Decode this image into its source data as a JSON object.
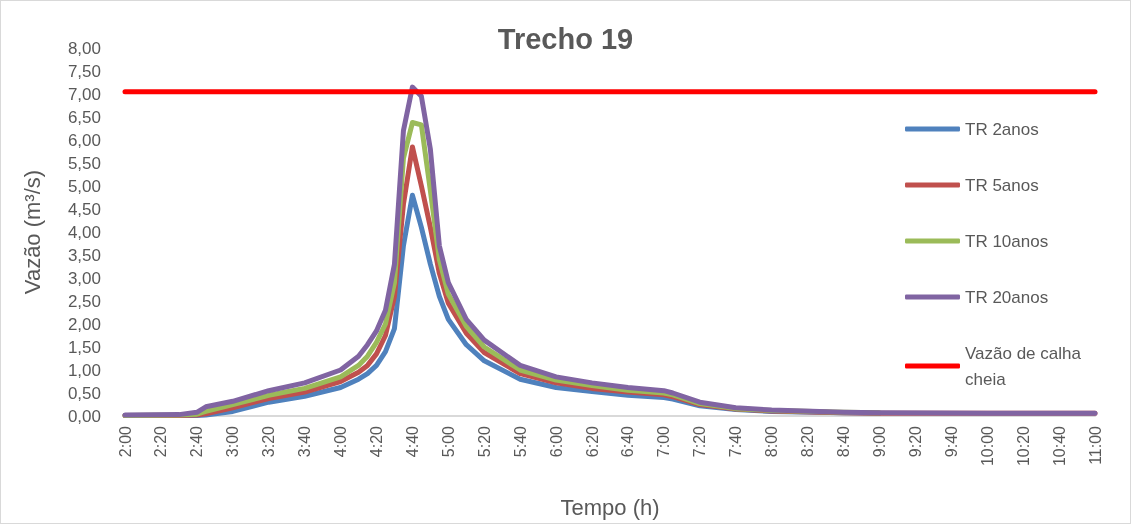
{
  "chart_data": {
    "type": "line",
    "title": "Trecho 19",
    "xlabel": "Tempo (h)",
    "ylabel": "Vazão (m³/s)",
    "x": [
      2,
      2.5,
      2.6667,
      2.75,
      3,
      3.3333,
      3.6667,
      4,
      4.1667,
      4.25,
      4.3333,
      4.4167,
      4.5,
      4.5833,
      4.6667,
      4.75,
      4.8333,
      4.9167,
      5,
      5.1667,
      5.3333,
      5.6667,
      6,
      6.3333,
      6.6667,
      7,
      7.0833,
      7.3333,
      7.6667,
      8,
      8.6667,
      9,
      10,
      11
    ],
    "series": [
      {
        "name": "TR 2anos",
        "color": "#4f81bd",
        "values": [
          0.01,
          0.01,
          0.01,
          0.02,
          0.1,
          0.3,
          0.43,
          0.62,
          0.8,
          0.92,
          1.1,
          1.4,
          1.9,
          3.7,
          4.8,
          4.1,
          3.3,
          2.6,
          2.1,
          1.55,
          1.2,
          0.8,
          0.62,
          0.53,
          0.45,
          0.4,
          0.37,
          0.22,
          0.14,
          0.1,
          0.07,
          0.06,
          null,
          null
        ]
      },
      {
        "name": "TR 5anos",
        "color": "#c0504d",
        "values": [
          0.01,
          0.01,
          0.02,
          0.05,
          0.18,
          0.38,
          0.52,
          0.75,
          0.95,
          1.1,
          1.35,
          1.75,
          2.6,
          4.6,
          5.85,
          5.0,
          4.1,
          3.1,
          2.45,
          1.8,
          1.38,
          0.92,
          0.72,
          0.6,
          0.52,
          0.46,
          0.42,
          0.25,
          0.15,
          0.11,
          0.07,
          0.06,
          0.06,
          0.06
        ]
      },
      {
        "name": "TR 10anos",
        "color": "#9bbb59",
        "values": [
          0.01,
          0.02,
          0.04,
          0.1,
          0.25,
          0.45,
          0.6,
          0.85,
          1.1,
          1.3,
          1.6,
          2.0,
          2.9,
          5.6,
          6.38,
          6.33,
          4.9,
          3.4,
          2.65,
          1.95,
          1.5,
          1.0,
          0.78,
          0.66,
          0.56,
          0.5,
          0.46,
          0.27,
          0.16,
          0.12,
          0.08,
          0.07,
          null,
          null
        ]
      },
      {
        "name": "TR 20anos",
        "color": "#8064a2",
        "values": [
          0.02,
          0.03,
          0.08,
          0.2,
          0.32,
          0.55,
          0.72,
          1.0,
          1.3,
          1.55,
          1.85,
          2.3,
          3.3,
          6.2,
          7.15,
          6.95,
          5.8,
          3.7,
          2.9,
          2.1,
          1.65,
          1.1,
          0.85,
          0.72,
          0.62,
          0.55,
          0.5,
          0.3,
          0.18,
          0.13,
          0.08,
          0.07,
          0.06,
          0.06
        ]
      },
      {
        "name": "Vazão de calha cheia",
        "color": "#ff0000",
        "x": [
          2,
          11
        ],
        "values": [
          7.05,
          7.05
        ]
      }
    ],
    "xlim": [
      2,
      11
    ],
    "xticks": [
      {
        "value": 2,
        "label": "2:00"
      },
      {
        "value": 2.3333,
        "label": "2:20"
      },
      {
        "value": 2.6667,
        "label": "2:40"
      },
      {
        "value": 3,
        "label": "3:00"
      },
      {
        "value": 3.3333,
        "label": "3:20"
      },
      {
        "value": 3.6667,
        "label": "3:40"
      },
      {
        "value": 4,
        "label": "4:00"
      },
      {
        "value": 4.3333,
        "label": "4:20"
      },
      {
        "value": 4.6667,
        "label": "4:40"
      },
      {
        "value": 5,
        "label": "5:00"
      },
      {
        "value": 5.3333,
        "label": "5:20"
      },
      {
        "value": 5.6667,
        "label": "5:40"
      },
      {
        "value": 6,
        "label": "6:00"
      },
      {
        "value": 6.3333,
        "label": "6:20"
      },
      {
        "value": 6.6667,
        "label": "6:40"
      },
      {
        "value": 7,
        "label": "7:00"
      },
      {
        "value": 7.3333,
        "label": "7:20"
      },
      {
        "value": 7.6667,
        "label": "7:40"
      },
      {
        "value": 8,
        "label": "8:00"
      },
      {
        "value": 8.3333,
        "label": "8:20"
      },
      {
        "value": 8.6667,
        "label": "8:40"
      },
      {
        "value": 9,
        "label": "9:00"
      },
      {
        "value": 9.3333,
        "label": "9:20"
      },
      {
        "value": 9.6667,
        "label": "9:40"
      },
      {
        "value": 10,
        "label": "10:00"
      },
      {
        "value": 10.3333,
        "label": "10:20"
      },
      {
        "value": 10.6667,
        "label": "10:40"
      },
      {
        "value": 11,
        "label": "11:00"
      }
    ],
    "ylim": [
      0,
      8
    ],
    "yticks": [
      {
        "value": 0,
        "label": "0,00"
      },
      {
        "value": 0.5,
        "label": "0,50"
      },
      {
        "value": 1,
        "label": "1,00"
      },
      {
        "value": 1.5,
        "label": "1,50"
      },
      {
        "value": 2,
        "label": "2,00"
      },
      {
        "value": 2.5,
        "label": "2,50"
      },
      {
        "value": 3,
        "label": "3,00"
      },
      {
        "value": 3.5,
        "label": "3,50"
      },
      {
        "value": 4,
        "label": "4,00"
      },
      {
        "value": 4.5,
        "label": "4,50"
      },
      {
        "value": 5,
        "label": "5,00"
      },
      {
        "value": 5.5,
        "label": "5,50"
      },
      {
        "value": 6,
        "label": "6,00"
      },
      {
        "value": 6.5,
        "label": "6,50"
      },
      {
        "value": 7,
        "label": "7,00"
      },
      {
        "value": 7.5,
        "label": "7,50"
      },
      {
        "value": 8,
        "label": "8,00"
      }
    ],
    "grid": false,
    "legend": "right",
    "marker": "none",
    "line_style": "solid"
  }
}
